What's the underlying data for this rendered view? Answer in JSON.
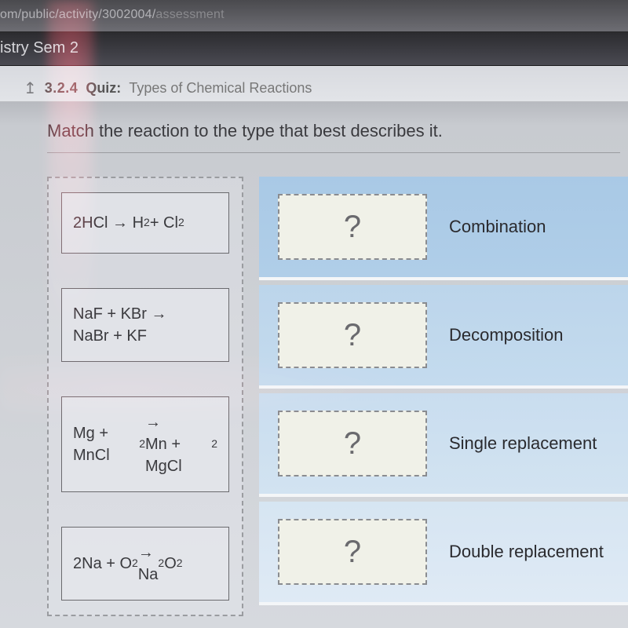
{
  "url": {
    "visible": "om/public/activity/3002004/",
    "faded": "assessment"
  },
  "course": "istry Sem 2",
  "quiz": {
    "number": "3.2.4",
    "label": "Quiz:",
    "title": "Types of Chemical Reactions"
  },
  "instruction": "Match the reaction to the type that best describes it.",
  "reactions": [
    {
      "html": "2HCl → H<sub>2</sub> + Cl<sub>2</sub>"
    },
    {
      "html": "NaF + KBr →<br>NaBr + KF"
    },
    {
      "html": "Mg + MnCl<sub>2</sub> →<br>Mn + MgCl<sub>2</sub>"
    },
    {
      "html": "2Na + O<sub>2</sub> →<br>Na<sub>2</sub>O<sub>2</sub>"
    }
  ],
  "targets": [
    {
      "placeholder": "?",
      "label": "Combination"
    },
    {
      "placeholder": "?",
      "label": "Decomposition"
    },
    {
      "placeholder": "?",
      "label": "Single replacement"
    },
    {
      "placeholder": "?",
      "label": "Double replacement"
    }
  ],
  "colors": {
    "row_bg": [
      "#a9c9e6",
      "#bcd5eb",
      "#c9ddef",
      "#d6e5f2"
    ],
    "slot_bg": "#f0f1e8",
    "slot_border": "#8a8c90",
    "card_border": "#6a6a6e"
  }
}
